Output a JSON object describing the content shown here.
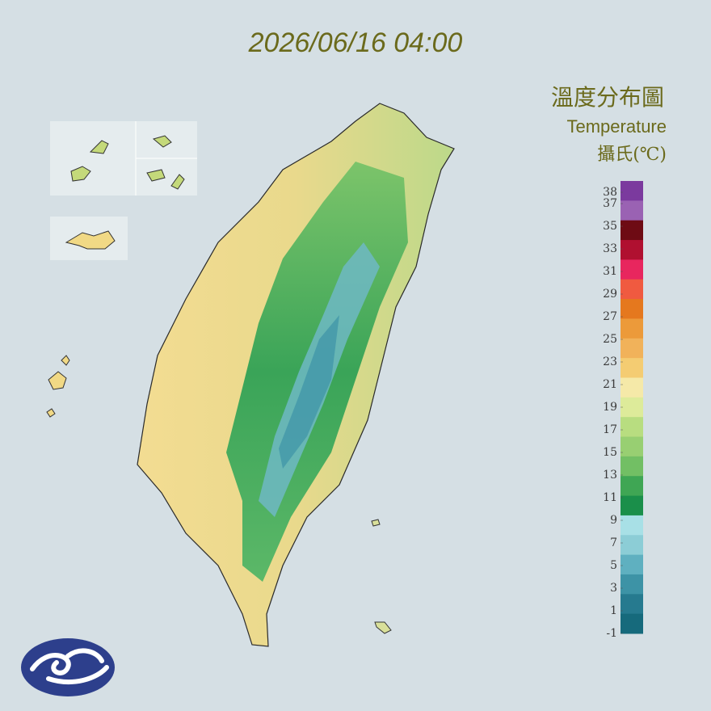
{
  "header": {
    "timestamp": "2026/06/16 04:00"
  },
  "legend": {
    "title": "溫度分布圖",
    "subtitle": "Temperature",
    "unit": "攝氏(℃)",
    "ylim": [
      -1,
      39
    ],
    "ticks": [
      38,
      37,
      35,
      33,
      31,
      29,
      27,
      25,
      23,
      21,
      19,
      17,
      15,
      13,
      11,
      9,
      7,
      5,
      3,
      1,
      -1
    ],
    "colors": [
      "#7b3a9e",
      "#9a62b3",
      "#6e0b14",
      "#b01030",
      "#e8265e",
      "#f05a40",
      "#e5781e",
      "#ec9a3a",
      "#f1b25a",
      "#f4cc72",
      "#f5e9a8",
      "#ddeb9a",
      "#b8dd80",
      "#98cf72",
      "#72bf64",
      "#3fa654",
      "#1a8f4a",
      "#a8e0e6",
      "#8ccdd6",
      "#5fb0c0",
      "#3d93a6",
      "#267a8f",
      "#166a7c"
    ]
  }
}
